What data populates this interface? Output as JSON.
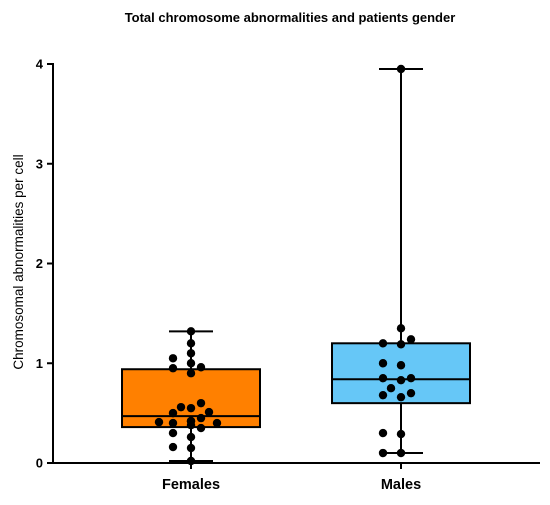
{
  "chart_data": {
    "type": "box",
    "title": "Total chromosome abnormalities and patients gender",
    "xlabel": "",
    "ylabel": "Chromosomal abnormalities per cell",
    "ylim": [
      0,
      4
    ],
    "yticks": [
      "0",
      "1",
      "2",
      "3",
      "4"
    ],
    "grid": false,
    "categories": [
      "Females",
      "Males"
    ],
    "colors": {
      "Females": "#ff8000",
      "Males": "#66c7f7"
    },
    "boxes": [
      {
        "name": "Females",
        "min": 0.02,
        "q1": 0.36,
        "median": 0.47,
        "q3": 0.94,
        "max": 1.32
      },
      {
        "name": "Males",
        "min": 0.1,
        "q1": 0.6,
        "median": 0.84,
        "q3": 1.2,
        "max": 3.95
      }
    ],
    "points": [
      [
        0.02,
        0.15,
        0.16,
        0.26,
        0.3,
        0.35,
        0.38,
        0.4,
        0.4,
        0.41,
        0.42,
        0.42,
        0.45,
        0.5,
        0.51,
        0.55,
        0.56,
        0.6,
        0.9,
        0.95,
        0.96,
        1.0,
        1.05,
        1.1,
        1.2,
        1.32
      ],
      [
        0.1,
        0.1,
        0.29,
        0.3,
        0.66,
        0.68,
        0.7,
        0.75,
        0.83,
        0.85,
        0.85,
        0.98,
        1.0,
        1.19,
        1.2,
        1.24,
        1.35,
        3.95
      ]
    ]
  }
}
